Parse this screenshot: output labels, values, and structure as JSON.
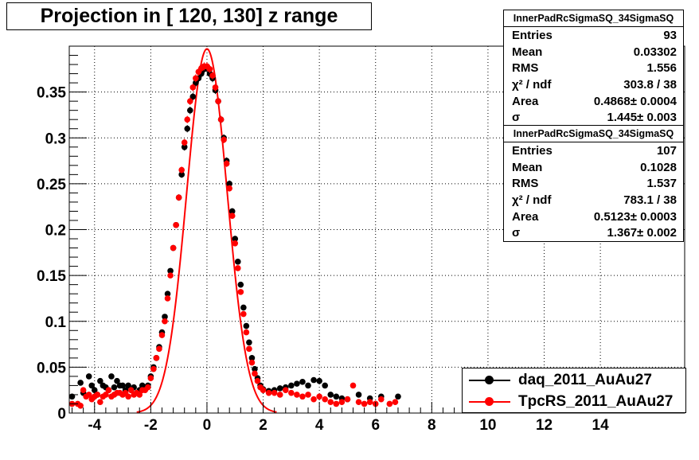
{
  "title": "Projection in [ 120, 130] z range",
  "stats": [
    {
      "header": "InnerPadRcSigmaSQ_34SigmaSQ",
      "rows": [
        {
          "key": "Entries",
          "value": "93"
        },
        {
          "key": "Mean",
          "value": "0.03302"
        },
        {
          "key": "RMS",
          "value": "1.556"
        },
        {
          "key": "χ² / ndf",
          "value": "303.8 / 38"
        },
        {
          "key": "Area",
          "value": "0.4868± 0.0004"
        },
        {
          "key": "σ",
          "value": "1.445± 0.003"
        }
      ]
    },
    {
      "header": "InnerPadRcSigmaSQ_34SigmaSQ",
      "rows": [
        {
          "key": "Entries",
          "value": "107"
        },
        {
          "key": "Mean",
          "value": "0.1028"
        },
        {
          "key": "RMS",
          "value": "1.537"
        },
        {
          "key": "χ² / ndf",
          "value": "783.1 / 38"
        },
        {
          "key": "Area",
          "value": "0.5123± 0.0003"
        },
        {
          "key": "σ",
          "value": "1.367± 0.002"
        }
      ]
    }
  ],
  "legend": [
    {
      "label": "daq_2011_AuAu27",
      "color": "#000000"
    },
    {
      "label": "TpcRS_2011_AuAu27",
      "color": "#ff0000"
    }
  ],
  "chart_data": {
    "type": "scatter",
    "xlim": [
      -4.9,
      17.0
    ],
    "ylim": [
      0,
      0.4
    ],
    "grid": true,
    "legend_position": "bottom-right",
    "x_ticks": [
      -4,
      -2,
      0,
      2,
      4,
      6,
      8,
      10,
      12,
      14
    ],
    "x_tick_labels": [
      "-4",
      "-2",
      "0",
      "2",
      "4",
      "6",
      "8",
      "10",
      "12",
      "14"
    ],
    "y_ticks": [
      0,
      0.05,
      0.1,
      0.15,
      0.2,
      0.25,
      0.3,
      0.35
    ],
    "y_tick_labels": [
      "0",
      "0.05",
      "0.1",
      "0.15",
      "0.2",
      "0.25",
      "0.3",
      "0.35"
    ],
    "series": [
      {
        "name": "daq_2011_AuAu27",
        "color": "#000000",
        "x": [
          -4.8,
          -4.5,
          -4.4,
          -4.2,
          -4.1,
          -4.0,
          -3.9,
          -3.8,
          -3.7,
          -3.6,
          -3.5,
          -3.4,
          -3.3,
          -3.2,
          -3.1,
          -3.0,
          -2.9,
          -2.8,
          -2.7,
          -2.6,
          -2.5,
          -2.4,
          -2.3,
          -2.2,
          -2.1,
          -2.0,
          -1.9,
          -1.8,
          -1.7,
          -1.6,
          -1.5,
          -1.4,
          -1.3,
          -1.2,
          -1.1,
          -1.0,
          -0.9,
          -0.8,
          -0.7,
          -0.6,
          -0.5,
          -0.4,
          -0.3,
          -0.2,
          -0.1,
          0.0,
          0.1,
          0.2,
          0.3,
          0.4,
          0.5,
          0.6,
          0.7,
          0.8,
          0.9,
          1.0,
          1.1,
          1.2,
          1.3,
          1.4,
          1.5,
          1.6,
          1.7,
          1.8,
          1.9,
          2.0,
          2.2,
          2.4,
          2.6,
          2.8,
          3.0,
          3.2,
          3.4,
          3.6,
          3.8,
          4.0,
          4.2,
          4.4,
          4.6,
          4.8,
          5.0,
          5.4,
          5.8,
          6.2,
          6.8
        ],
        "y": [
          0.018,
          0.033,
          0.022,
          0.04,
          0.03,
          0.025,
          0.02,
          0.035,
          0.03,
          0.028,
          0.025,
          0.04,
          0.028,
          0.035,
          0.03,
          0.03,
          0.025,
          0.03,
          0.025,
          0.028,
          0.022,
          0.025,
          0.03,
          0.028,
          0.03,
          0.04,
          0.05,
          0.06,
          0.072,
          0.088,
          0.105,
          0.13,
          0.155,
          0.18,
          0.205,
          0.235,
          0.26,
          0.29,
          0.31,
          0.33,
          0.345,
          0.36,
          0.365,
          0.37,
          0.375,
          0.376,
          0.37,
          0.365,
          0.352,
          0.34,
          0.32,
          0.3,
          0.275,
          0.25,
          0.22,
          0.19,
          0.165,
          0.14,
          0.115,
          0.095,
          0.077,
          0.06,
          0.048,
          0.038,
          0.03,
          0.026,
          0.024,
          0.025,
          0.027,
          0.028,
          0.03,
          0.032,
          0.034,
          0.03,
          0.036,
          0.035,
          0.03,
          0.02,
          0.018,
          0.016,
          0.015,
          0.02,
          0.016,
          0.018,
          0.018
        ]
      },
      {
        "name": "TpcRS_2011_AuAu27",
        "color": "#ff0000",
        "x": [
          -4.8,
          -4.6,
          -4.5,
          -4.4,
          -4.3,
          -4.2,
          -4.1,
          -4.0,
          -3.9,
          -3.8,
          -3.7,
          -3.6,
          -3.5,
          -3.4,
          -3.3,
          -3.2,
          -3.1,
          -3.0,
          -2.9,
          -2.8,
          -2.7,
          -2.6,
          -2.5,
          -2.4,
          -2.3,
          -2.2,
          -2.1,
          -2.0,
          -1.9,
          -1.8,
          -1.7,
          -1.6,
          -1.5,
          -1.4,
          -1.3,
          -1.2,
          -1.1,
          -1.0,
          -0.9,
          -0.8,
          -0.7,
          -0.6,
          -0.5,
          -0.4,
          -0.3,
          -0.2,
          -0.1,
          0.0,
          0.1,
          0.2,
          0.3,
          0.4,
          0.5,
          0.6,
          0.7,
          0.8,
          0.9,
          1.0,
          1.1,
          1.2,
          1.3,
          1.4,
          1.5,
          1.6,
          1.7,
          1.8,
          1.9,
          2.0,
          2.2,
          2.4,
          2.6,
          2.8,
          3.0,
          3.2,
          3.4,
          3.6,
          3.8,
          4.0,
          4.2,
          4.4,
          4.6,
          4.8,
          5.0,
          5.2,
          5.4,
          5.6,
          5.8,
          6.0,
          6.2,
          6.5,
          6.7
        ],
        "y": [
          0.01,
          0.01,
          0.008,
          0.025,
          0.018,
          0.02,
          0.015,
          0.018,
          0.02,
          0.012,
          0.018,
          0.02,
          0.025,
          0.018,
          0.02,
          0.022,
          0.022,
          0.02,
          0.022,
          0.018,
          0.025,
          0.02,
          0.022,
          0.02,
          0.025,
          0.025,
          0.028,
          0.038,
          0.048,
          0.06,
          0.07,
          0.085,
          0.1,
          0.125,
          0.15,
          0.18,
          0.205,
          0.235,
          0.265,
          0.295,
          0.32,
          0.34,
          0.355,
          0.365,
          0.372,
          0.376,
          0.378,
          0.378,
          0.375,
          0.368,
          0.355,
          0.34,
          0.32,
          0.298,
          0.272,
          0.245,
          0.215,
          0.185,
          0.158,
          0.132,
          0.108,
          0.088,
          0.07,
          0.055,
          0.043,
          0.035,
          0.028,
          0.025,
          0.022,
          0.022,
          0.02,
          0.025,
          0.022,
          0.02,
          0.018,
          0.02,
          0.015,
          0.018,
          0.015,
          0.012,
          0.01,
          0.012,
          0.015,
          0.03,
          0.012,
          0.01,
          0.012,
          0.01,
          0.015,
          0.01,
          0.012
        ]
      }
    ],
    "fits": [
      {
        "series": "TpcRS_2011_AuAu27",
        "color": "#ff0000",
        "function": "gaussian",
        "mean": 0.0,
        "sigma": 0.72,
        "peak": 0.397
      }
    ]
  }
}
